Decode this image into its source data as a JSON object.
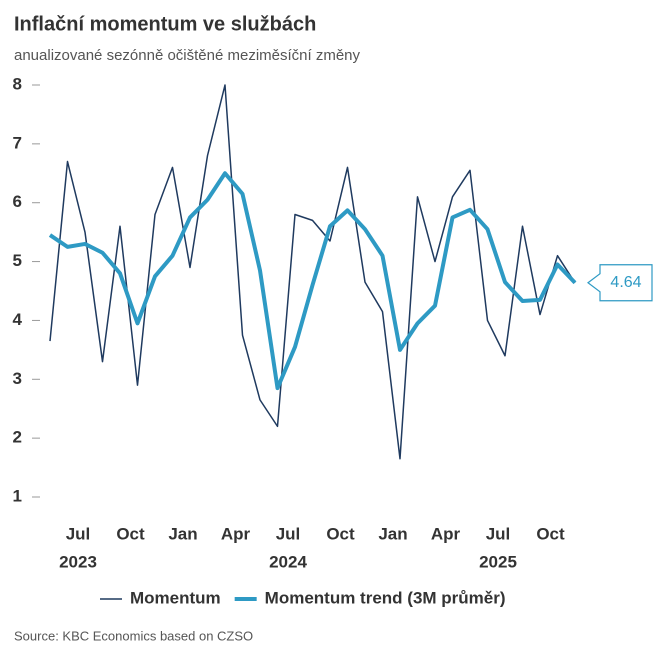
{
  "chart_data": {
    "type": "line",
    "title": "Inflační momentum ve službách",
    "subtitle": "anualizované sezónně očištěné meziměsíční změny",
    "source": "Source: KBC Economics based on CZSO",
    "categories": [
      null,
      null,
      "Jul",
      null,
      null,
      "Oct",
      null,
      null,
      "Jan",
      null,
      null,
      "Apr",
      null,
      null,
      "Jul",
      null,
      null,
      "Oct",
      null,
      null,
      "Jan",
      null,
      null,
      "Apr",
      null,
      null,
      "Jul",
      null,
      null,
      "Oct",
      null
    ],
    "category_years": [
      null,
      null,
      "2023",
      null,
      null,
      null,
      null,
      null,
      null,
      null,
      null,
      null,
      null,
      null,
      "2024",
      null,
      null,
      null,
      null,
      null,
      null,
      null,
      null,
      null,
      null,
      null,
      "2025",
      null,
      null,
      null,
      null
    ],
    "series": [
      {
        "name": "Momentum",
        "color": "#1f3a5f",
        "width": 1.5,
        "values": [
          3.65,
          6.7,
          5.5,
          3.3,
          5.6,
          2.9,
          5.8,
          6.6,
          4.9,
          6.8,
          8.0,
          3.75,
          2.65,
          2.2,
          5.8,
          5.7,
          5.35,
          6.6,
          4.65,
          4.15,
          1.65,
          6.1,
          5.0,
          6.1,
          6.55,
          4.0,
          3.4,
          5.6,
          4.1,
          5.1,
          4.64
        ]
      },
      {
        "name": "Momentum trend (3M průměr)",
        "color": "#2e9ac4",
        "width": 4,
        "values": [
          5.45,
          5.25,
          5.3,
          5.15,
          4.8,
          3.95,
          4.75,
          5.1,
          5.75,
          6.05,
          6.5,
          6.15,
          4.85,
          2.85,
          3.55,
          4.6,
          5.6,
          5.87,
          5.55,
          5.1,
          3.5,
          3.95,
          4.25,
          5.75,
          5.88,
          5.55,
          4.65,
          4.33,
          4.35,
          4.95,
          4.64
        ]
      }
    ],
    "annotation": "4.64",
    "ylim": [
      1,
      8
    ],
    "yticks": [
      1,
      2,
      3,
      4,
      5,
      6,
      7,
      8
    ],
    "grid": false
  }
}
